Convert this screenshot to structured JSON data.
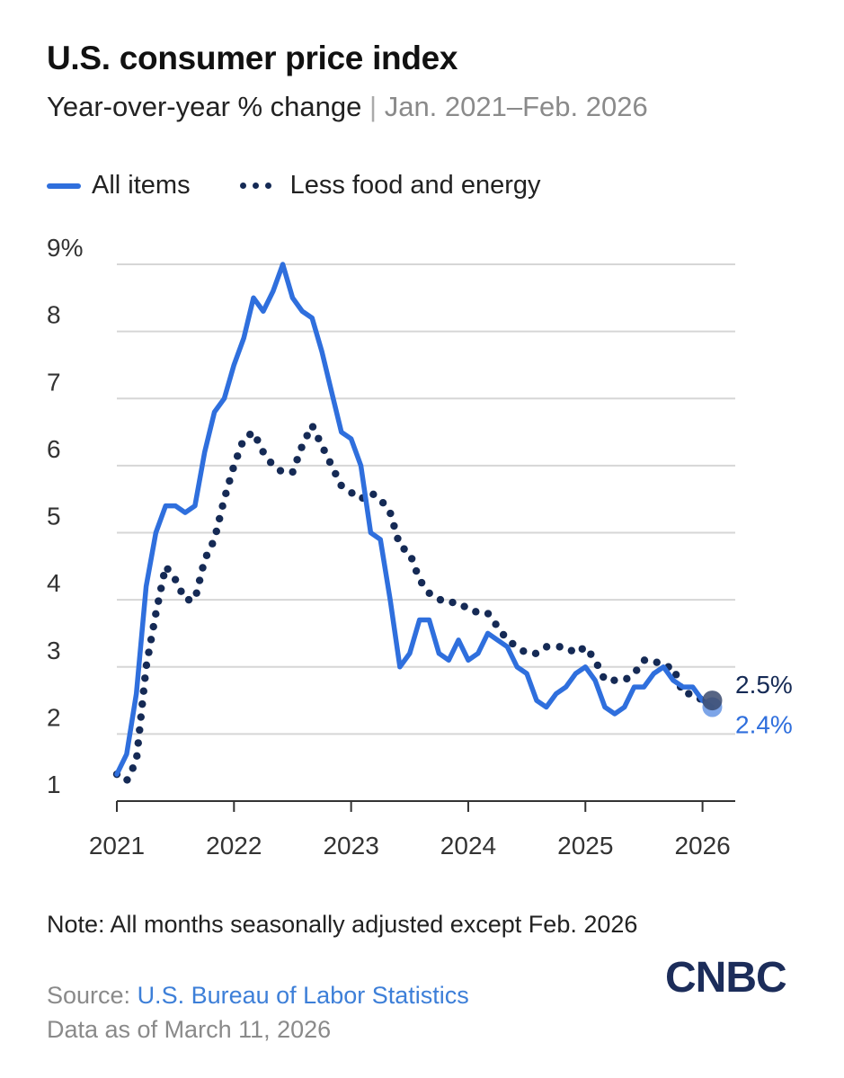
{
  "header": {
    "title": "U.S. consumer price index",
    "subtitle_main": "Year-over-year % change",
    "subtitle_sep": "|",
    "subtitle_range": "Jan. 2021–Feb. 2026"
  },
  "colors": {
    "all_items": "#2f6fdd",
    "core": "#152a55",
    "gridline": "#d6d6d6",
    "axis": "#333333"
  },
  "chart_data": {
    "type": "line",
    "title": "U.S. consumer price index",
    "ylabel": "Year-over-year % change",
    "ylim": [
      1,
      9
    ],
    "xlim": [
      2021.0,
      2026.2
    ],
    "y_ticks": [
      1,
      2,
      3,
      4,
      5,
      6,
      7,
      8,
      9
    ],
    "y_tick_labels": [
      "1",
      "2",
      "3",
      "4",
      "5",
      "6",
      "7",
      "8",
      "9%"
    ],
    "x_ticks": [
      2021,
      2022,
      2023,
      2024,
      2025,
      2026
    ],
    "x_tick_labels": [
      "2021",
      "2022",
      "2023",
      "2024",
      "2025",
      "2026"
    ],
    "grid": "horizontal",
    "legend_position": "top-left",
    "series": [
      {
        "name": "All items",
        "style": "solid",
        "end_label": "2.4%",
        "values": [
          1.4,
          1.7,
          2.6,
          4.2,
          5.0,
          5.4,
          5.4,
          5.3,
          5.4,
          6.2,
          6.8,
          7.0,
          7.5,
          7.9,
          8.5,
          8.3,
          8.6,
          9.0,
          8.5,
          8.3,
          8.2,
          7.7,
          7.1,
          6.5,
          6.4,
          6.0,
          5.0,
          4.9,
          4.0,
          3.0,
          3.2,
          3.7,
          3.7,
          3.2,
          3.1,
          3.4,
          3.1,
          3.2,
          3.5,
          3.4,
          3.3,
          3.0,
          2.9,
          2.5,
          2.4,
          2.6,
          2.7,
          2.9,
          3.0,
          2.8,
          2.4,
          2.3,
          2.4,
          2.7,
          2.7,
          2.9,
          3.0,
          2.8,
          2.7,
          2.7,
          2.5,
          2.4
        ]
      },
      {
        "name": "Less food and energy",
        "style": "dotted",
        "end_label": "2.5%",
        "values": [
          1.4,
          1.3,
          1.6,
          3.0,
          3.8,
          4.5,
          4.3,
          4.0,
          4.0,
          4.6,
          4.9,
          5.5,
          6.0,
          6.4,
          6.5,
          6.2,
          6.0,
          5.9,
          5.9,
          6.3,
          6.6,
          6.3,
          6.0,
          5.7,
          5.6,
          5.5,
          5.6,
          5.5,
          5.3,
          4.8,
          4.7,
          4.3,
          4.1,
          4.0,
          4.0,
          3.9,
          3.9,
          3.8,
          3.8,
          3.6,
          3.4,
          3.3,
          3.2,
          3.2,
          3.3,
          3.3,
          3.3,
          3.2,
          3.3,
          3.1,
          2.8,
          2.8,
          2.8,
          2.9,
          3.1,
          3.1,
          3.0,
          3.0,
          2.6,
          2.6,
          2.5,
          2.5
        ]
      }
    ]
  },
  "legend": {
    "all_items": "All items",
    "core": "Less food and energy"
  },
  "footer": {
    "note": "Note: All months seasonally adjusted except Feb. 2026",
    "source_prefix": "Source: ",
    "source_link": "U.S. Bureau of Labor Statistics",
    "as_of": "Data as of March 11, 2026",
    "logo": "CNBC"
  }
}
